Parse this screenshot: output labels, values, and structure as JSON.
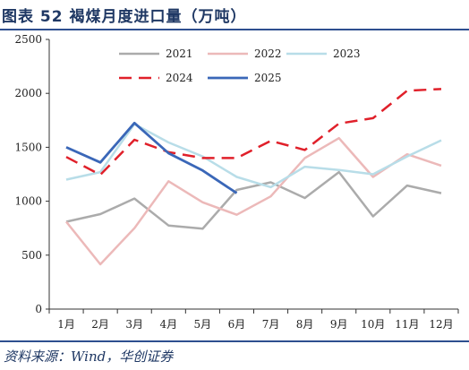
{
  "title": "图表 52   褐煤月度进口量（万吨）",
  "source": "资料来源：Wind，华创证券",
  "chart_data": {
    "type": "line",
    "title": "褐煤月度进口量（万吨）",
    "xlabel": "",
    "ylabel": "",
    "categories": [
      "1月",
      "2月",
      "3月",
      "4月",
      "5月",
      "6月",
      "7月",
      "8月",
      "9月",
      "10月",
      "11月",
      "12月"
    ],
    "ylim": [
      0,
      2500
    ],
    "yticks": [
      0,
      500,
      1000,
      1500,
      2000,
      2500
    ],
    "grid": false,
    "legend_position": "top",
    "series": [
      {
        "name": "2021",
        "color": "#ababab",
        "dash": "solid",
        "width": 2.5,
        "values": [
          810,
          880,
          1025,
          775,
          745,
          1105,
          1175,
          1030,
          1270,
          860,
          1145,
          1075
        ]
      },
      {
        "name": "2022",
        "color": "#ecb9b9",
        "dash": "solid",
        "width": 2.5,
        "values": [
          810,
          415,
          750,
          1185,
          990,
          875,
          1045,
          1400,
          1585,
          1225,
          1435,
          1330
        ]
      },
      {
        "name": "2023",
        "color": "#b8dde8",
        "dash": "solid",
        "width": 2.5,
        "values": [
          1200,
          1270,
          1715,
          1545,
          1415,
          1225,
          1130,
          1320,
          1290,
          1250,
          1415,
          1565
        ]
      },
      {
        "name": "2024",
        "color": "#e0202a",
        "dash": "dashed",
        "width": 2.5,
        "values": [
          1410,
          1245,
          1570,
          1455,
          1400,
          1400,
          1560,
          1475,
          1720,
          1770,
          2025,
          2040
        ]
      },
      {
        "name": "2025",
        "color": "#3a67b8",
        "dash": "solid",
        "width": 2.8,
        "values": [
          1500,
          1360,
          1725,
          1445,
          1285,
          1075,
          null,
          null,
          null,
          null,
          null,
          null
        ]
      }
    ]
  }
}
